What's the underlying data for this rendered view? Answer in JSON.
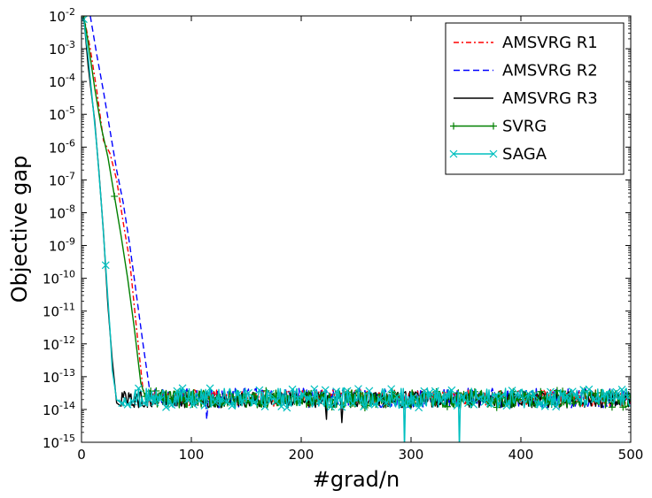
{
  "chart_data": {
    "type": "line",
    "title": "",
    "xlabel": "#grad/n",
    "ylabel": "Objective gap",
    "xlim": [
      0,
      500
    ],
    "ylim_log10": [
      -15,
      -2
    ],
    "grid": false,
    "legend_position": "top-right",
    "x_ticks": [
      {
        "value": 0,
        "label": "0"
      },
      {
        "value": 100,
        "label": "100"
      },
      {
        "value": 200,
        "label": "200"
      },
      {
        "value": 300,
        "label": "300"
      },
      {
        "value": 400,
        "label": "400"
      },
      {
        "value": 500,
        "label": "500"
      }
    ],
    "y_ticks": [
      {
        "exp": -2,
        "base": "10",
        "sup": "-2"
      },
      {
        "exp": -3,
        "base": "10",
        "sup": "-3"
      },
      {
        "exp": -4,
        "base": "10",
        "sup": "-4"
      },
      {
        "exp": -5,
        "base": "10",
        "sup": "-5"
      },
      {
        "exp": -6,
        "base": "10",
        "sup": "-6"
      },
      {
        "exp": -7,
        "base": "10",
        "sup": "-7"
      },
      {
        "exp": -8,
        "base": "10",
        "sup": "-8"
      },
      {
        "exp": -9,
        "base": "10",
        "sup": "-9"
      },
      {
        "exp": -10,
        "base": "10",
        "sup": "-10"
      },
      {
        "exp": -11,
        "base": "10",
        "sup": "-11"
      },
      {
        "exp": -12,
        "base": "10",
        "sup": "-12"
      },
      {
        "exp": -13,
        "base": "10",
        "sup": "-13"
      },
      {
        "exp": -14,
        "base": "10",
        "sup": "-14"
      },
      {
        "exp": -15,
        "base": "10",
        "sup": "-15"
      }
    ],
    "series": [
      {
        "name": "AMSVRG R1",
        "color": "#ff0000",
        "dash": "dashdot",
        "marker": "none",
        "convergence_log10": [
          [
            2,
            -2.0
          ],
          [
            8,
            -3.0
          ],
          [
            14,
            -4.3
          ],
          [
            20,
            -5.8
          ],
          [
            26,
            -6.2
          ],
          [
            32,
            -7.0
          ],
          [
            38,
            -8.3
          ],
          [
            44,
            -9.5
          ],
          [
            50,
            -11.5
          ],
          [
            56,
            -13.4
          ],
          [
            60,
            -13.6
          ]
        ],
        "noise_floor_log10": [
          -13.9,
          -13.4
        ],
        "floor_dips": []
      },
      {
        "name": "AMSVRG R2",
        "color": "#0000ff",
        "dash": "dashed",
        "marker": "none",
        "convergence_log10": [
          [
            8,
            -2.0
          ],
          [
            14,
            -3.2
          ],
          [
            20,
            -4.3
          ],
          [
            26,
            -5.5
          ],
          [
            32,
            -6.7
          ],
          [
            38,
            -7.7
          ],
          [
            44,
            -9.0
          ],
          [
            50,
            -10.5
          ],
          [
            56,
            -12.0
          ],
          [
            62,
            -13.4
          ],
          [
            66,
            -13.6
          ]
        ],
        "noise_floor_log10": [
          -13.95,
          -13.35
        ],
        "floor_dips": [
          [
            114,
            -14.3
          ]
        ]
      },
      {
        "name": "AMSVRG R3",
        "color": "#000000",
        "dash": "solid",
        "marker": "none",
        "convergence_log10": [
          [
            2,
            -2.0
          ],
          [
            6,
            -3.5
          ],
          [
            12,
            -5.2
          ],
          [
            16,
            -6.8
          ],
          [
            20,
            -8.6
          ],
          [
            24,
            -10.8
          ],
          [
            28,
            -12.5
          ],
          [
            32,
            -13.8
          ],
          [
            36,
            -13.9
          ]
        ],
        "noise_floor_log10": [
          -13.95,
          -13.45
        ],
        "floor_dips": [
          [
            223,
            -14.3
          ],
          [
            237,
            -14.4
          ]
        ]
      },
      {
        "name": "SVRG",
        "color": "#008000",
        "dash": "solid",
        "marker": "plus",
        "convergence_log10": [
          [
            2,
            -2.0
          ],
          [
            6,
            -2.8
          ],
          [
            12,
            -4.2
          ],
          [
            18,
            -5.4
          ],
          [
            24,
            -6.3
          ],
          [
            30,
            -7.5
          ],
          [
            36,
            -8.7
          ],
          [
            42,
            -10.0
          ],
          [
            48,
            -11.5
          ],
          [
            54,
            -13.2
          ],
          [
            58,
            -13.6
          ]
        ],
        "noise_floor_log10": [
          -13.95,
          -13.4
        ],
        "floor_dips": []
      },
      {
        "name": "SAGA",
        "color": "#00bfbf",
        "dash": "solid",
        "marker": "x",
        "convergence_log10": [
          [
            2,
            -2.1
          ],
          [
            6,
            -3.2
          ],
          [
            10,
            -4.6
          ],
          [
            14,
            -6.0
          ],
          [
            18,
            -7.7
          ],
          [
            22,
            -9.6
          ],
          [
            26,
            -11.6
          ],
          [
            28,
            -12.8
          ],
          [
            32,
            -13.7
          ],
          [
            36,
            -13.8
          ]
        ],
        "noise_floor_log10": [
          -13.95,
          -13.35
        ],
        "floor_dips": [
          [
            294,
            -15.2
          ],
          [
            344,
            -15.2
          ]
        ]
      }
    ]
  }
}
